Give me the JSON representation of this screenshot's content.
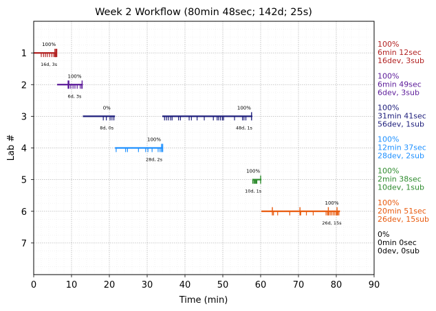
{
  "chart_data": {
    "type": "timeline",
    "title": "Week 2 Workflow (80min 48sec; 142d; 25s)",
    "xlabel": "Time (min)",
    "ylabel": "Lab #",
    "xlim": [
      0,
      90
    ],
    "ylim": [
      8,
      0
    ],
    "xticks": [
      0,
      10,
      20,
      30,
      40,
      50,
      60,
      70,
      80,
      90
    ],
    "yticks": [
      1,
      2,
      3,
      4,
      5,
      6,
      7
    ],
    "grid": true,
    "labs": [
      {
        "lab": 1,
        "color": "#b22222",
        "segments": [
          [
            0,
            6.2
          ]
        ],
        "devs": [
          2.0,
          2.6,
          3.1,
          3.6,
          4.2,
          4.8,
          5.3,
          5.7,
          5.9
        ],
        "subs": [
          5.6,
          5.9,
          6.1
        ],
        "progress_label": "100%",
        "count_label": "16d, 3s",
        "side_labels": [
          "100%",
          "6min 12sec",
          "16dev, 3sub"
        ]
      },
      {
        "lab": 2,
        "color": "#5b1a99",
        "segments": [
          [
            6.2,
            13.0
          ]
        ],
        "devs": [
          9.8,
          10.4,
          10.9,
          11.5,
          12.3,
          12.7
        ],
        "subs": [
          9.1,
          9.3,
          12.8
        ],
        "progress_label": "100%",
        "count_label": "6d, 3s",
        "side_labels": [
          "100%",
          "6min 49sec",
          "6dev, 3sub"
        ]
      },
      {
        "lab": 3,
        "color": "#1c1c7a",
        "segments": [
          [
            13.0,
            21.5
          ],
          [
            34.0,
            57.8
          ]
        ],
        "devs": [
          18.4,
          19.2,
          20.2,
          20.7,
          21.2,
          34.6,
          35.1,
          35.6,
          36.2,
          36.6,
          38.3,
          38.8,
          41.1,
          41.7,
          43.2,
          45.1,
          47.5,
          48.5,
          48.9,
          49.4,
          49.9,
          50.2,
          53.1,
          55.2,
          55.6,
          56.1
        ],
        "subs": [
          57.6
        ],
        "progress_label": "0%",
        "progress_label_2": "100%",
        "count_label": "8d, 0s",
        "count_label_2": "48d, 1s",
        "side_labels": [
          "100%",
          "31min 41sec",
          "56dev, 1sub"
        ]
      },
      {
        "lab": 4,
        "color": "#1e90ff",
        "segments": [
          [
            21.5,
            34.0
          ]
        ],
        "devs": [
          21.8,
          24.3,
          24.8,
          27.7,
          29.6,
          30.2,
          31.3,
          32.9,
          33.4
        ],
        "subs": [
          33.8,
          34.1
        ],
        "progress_label": "100%",
        "count_label": "28d, 2s",
        "side_labels": [
          "100%",
          "12min 37sec",
          "28dev, 2sub"
        ]
      },
      {
        "lab": 5,
        "color": "#2e8b2e",
        "segments": [
          [
            57.8,
            60.2
          ]
        ],
        "devs": [
          57.9,
          58.2,
          58.4,
          58.6,
          58.8,
          59.0
        ],
        "subs": [
          60.0
        ],
        "progress_label": "100%",
        "count_label": "10d, 1s",
        "side_labels": [
          "100%",
          "2min 38sec",
          "10dev, 1sub"
        ]
      },
      {
        "lab": 6,
        "color": "#e8590c",
        "segments": [
          [
            60.2,
            81.0
          ]
        ],
        "devs": [
          63.4,
          64.5,
          67.7,
          70.6,
          72.1,
          73.9,
          77.3,
          77.7,
          78.0,
          78.4,
          78.8,
          79.2,
          79.6,
          80.0,
          80.4,
          80.7
        ],
        "subs": [
          63.1,
          70.4,
          77.9,
          80.2
        ],
        "progress_label": "100%",
        "count_label": "26d, 15s",
        "side_labels": [
          "100%",
          "20min 51sec",
          "26dev, 15sub"
        ]
      },
      {
        "lab": 7,
        "color": "#000000",
        "segments": [],
        "devs": [],
        "subs": [],
        "progress_label": "",
        "count_label": "",
        "side_labels": [
          "0%",
          "0min 0sec",
          "0dev, 0sub"
        ]
      }
    ]
  }
}
